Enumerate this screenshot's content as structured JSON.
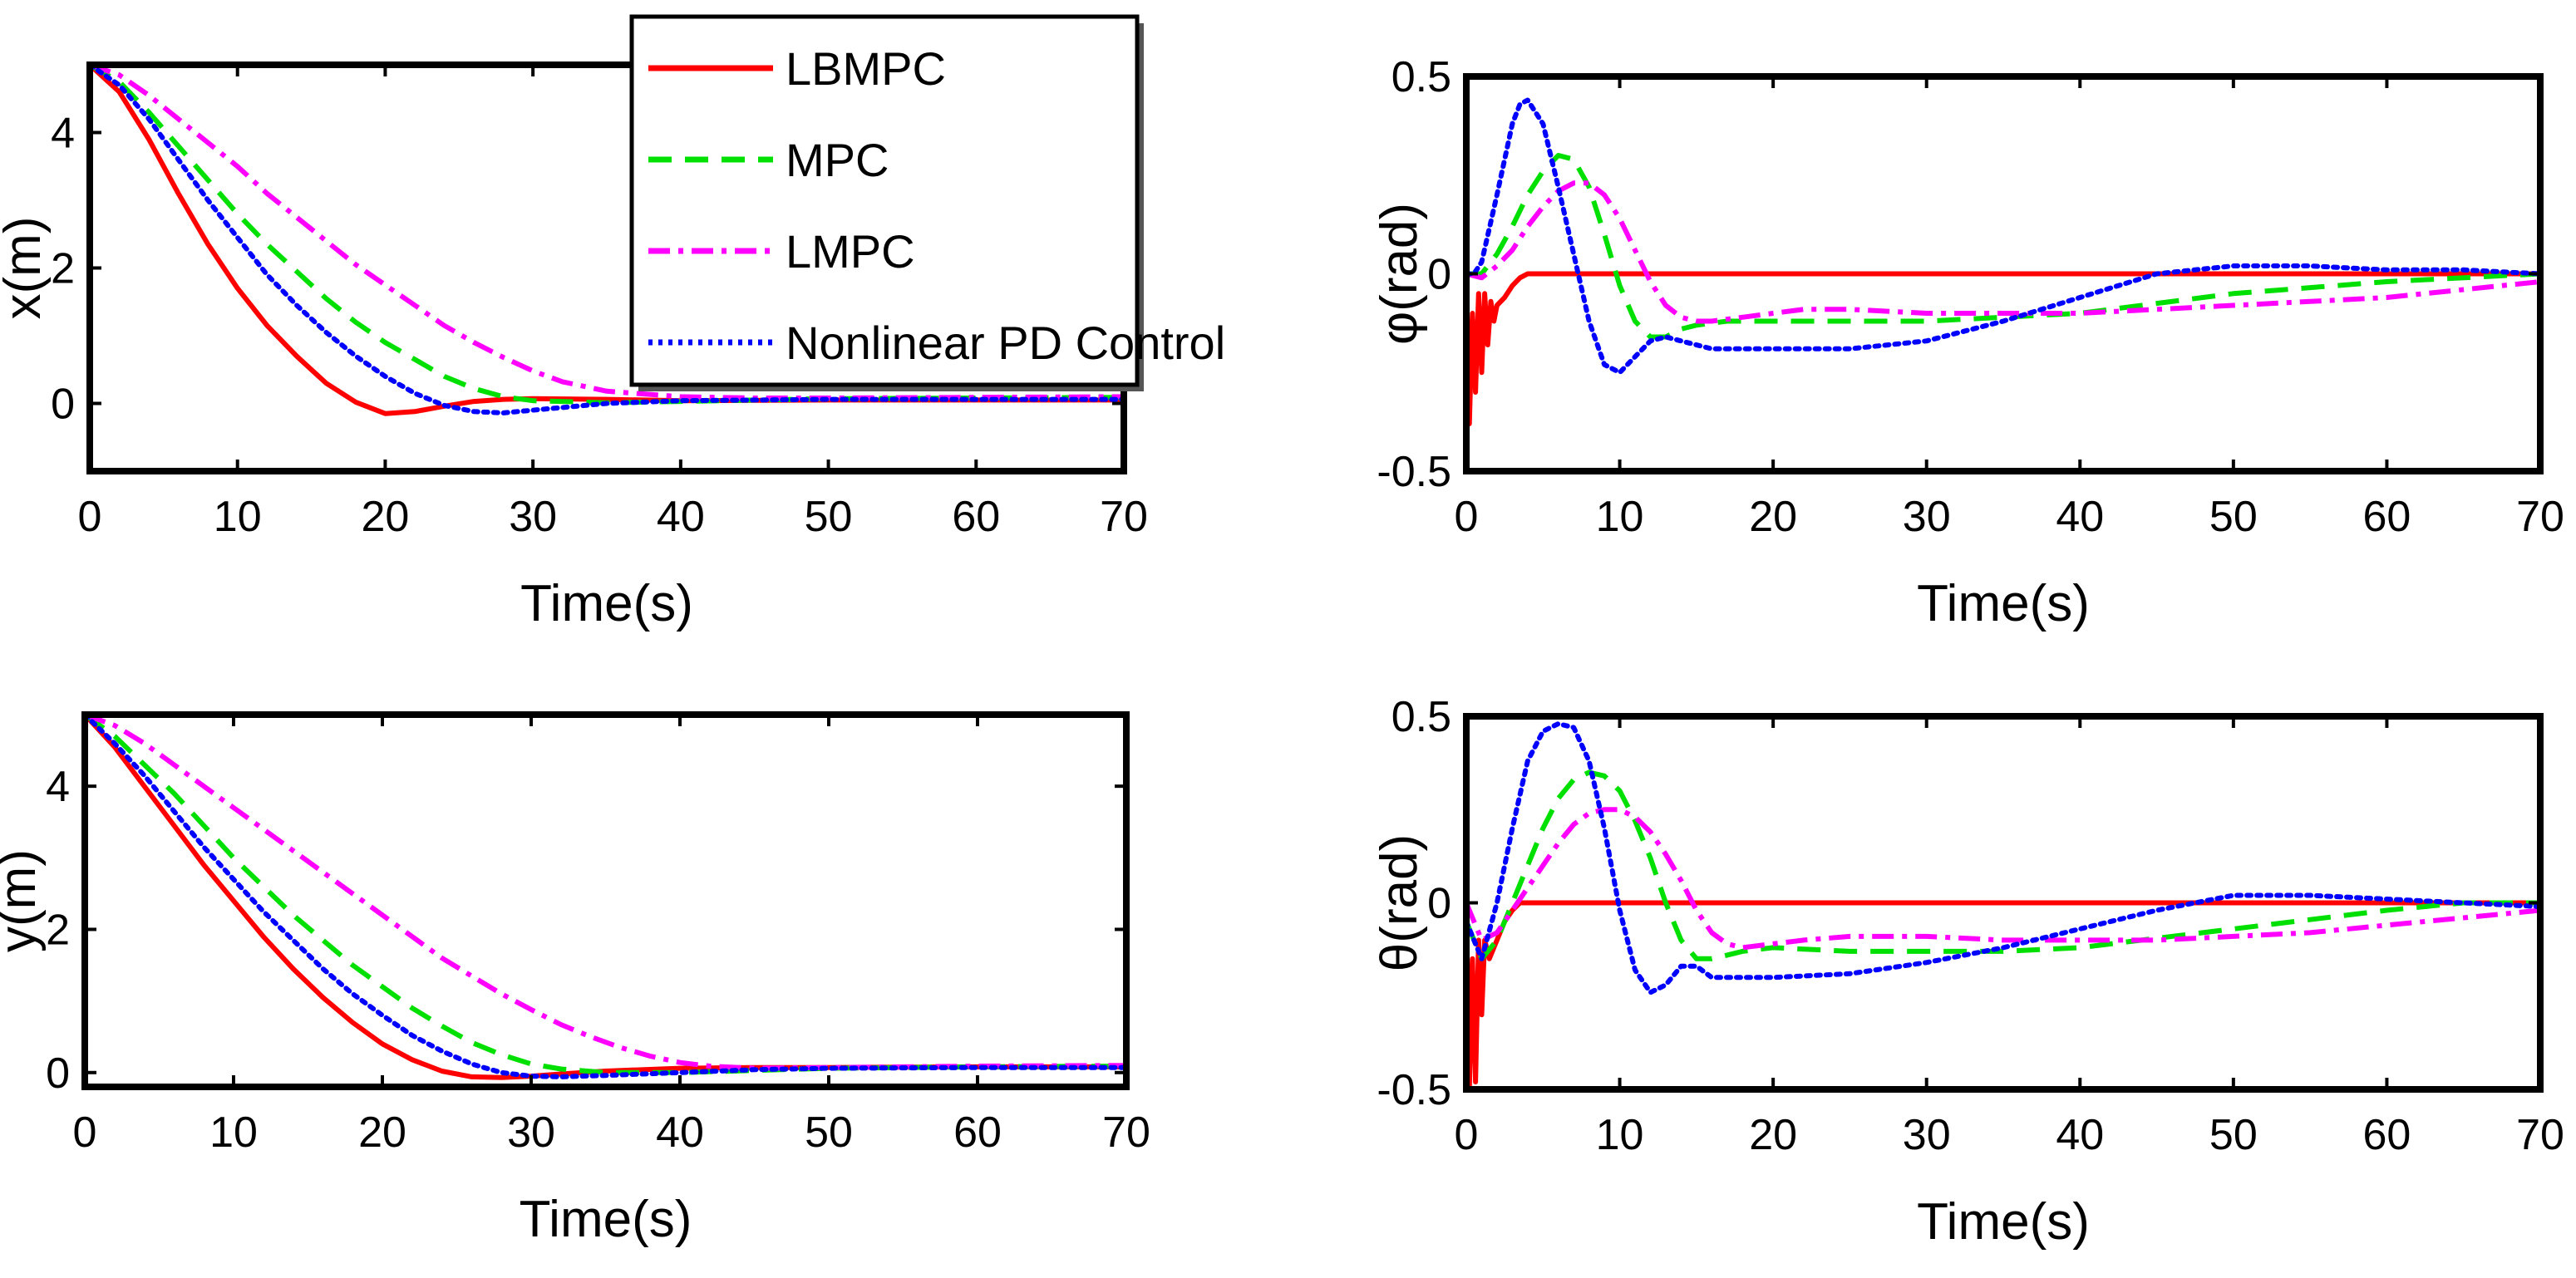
{
  "series_styles": [
    {
      "name": "LBMPC",
      "color": "#ff0000",
      "dash": "none"
    },
    {
      "name": "MPC",
      "color": "#00e000",
      "dash": "dashed"
    },
    {
      "name": "LMPC",
      "color": "#ff00ff",
      "dash": "dashdot"
    },
    {
      "name": "Nonlinear PD Control",
      "color": "#0000ff",
      "dash": "dotted"
    }
  ],
  "legend": {
    "entries": [
      "LBMPC",
      "MPC",
      "LMPC",
      "Nonlinear PD Control"
    ],
    "placement": "top-left panel, upper-right corner"
  },
  "chart_data": [
    {
      "type": "line",
      "id": "x",
      "title": "",
      "xlabel": "Time(s)",
      "ylabel": "x(m)",
      "xlim": [
        0,
        70
      ],
      "ylim": [
        -1,
        5
      ],
      "xticks": [
        0,
        10,
        20,
        30,
        40,
        50,
        60,
        70
      ],
      "yticks": [
        0,
        2,
        4
      ],
      "xtick_labels": [
        "0",
        "10",
        "20",
        "30",
        "40",
        "50",
        "60",
        "70"
      ],
      "ytick_labels": [
        "0",
        "2",
        "4"
      ],
      "series": [
        {
          "name": "LBMPC",
          "x": [
            0,
            2,
            4,
            6,
            8,
            10,
            12,
            14,
            16,
            18,
            20,
            22,
            24,
            26,
            28,
            30,
            35,
            40,
            50,
            60,
            70
          ],
          "y": [
            5,
            4.6,
            3.9,
            3.1,
            2.35,
            1.7,
            1.15,
            0.7,
            0.3,
            0.02,
            -0.15,
            -0.12,
            -0.04,
            0.03,
            0.06,
            0.07,
            0.06,
            0.04,
            0.05,
            0.05,
            0.05
          ]
        },
        {
          "name": "MPC",
          "x": [
            0,
            2,
            4,
            6,
            8,
            10,
            12,
            14,
            16,
            18,
            20,
            22,
            24,
            26,
            28,
            30,
            35,
            40,
            50,
            60,
            70
          ],
          "y": [
            5,
            4.75,
            4.3,
            3.8,
            3.3,
            2.8,
            2.35,
            1.95,
            1.55,
            1.2,
            0.9,
            0.65,
            0.4,
            0.22,
            0.1,
            0.04,
            0.01,
            0.03,
            0.07,
            0.08,
            0.09
          ]
        },
        {
          "name": "LMPC",
          "x": [
            0,
            2,
            4,
            6,
            8,
            10,
            12,
            14,
            16,
            18,
            20,
            22,
            24,
            26,
            28,
            30,
            32,
            35,
            40,
            45,
            50,
            60,
            70
          ],
          "y": [
            5,
            4.85,
            4.55,
            4.2,
            3.85,
            3.5,
            3.1,
            2.75,
            2.4,
            2.05,
            1.75,
            1.45,
            1.15,
            0.9,
            0.68,
            0.48,
            0.32,
            0.18,
            0.1,
            0.08,
            0.08,
            0.09,
            0.1
          ]
        },
        {
          "name": "Nonlinear PD Control",
          "x": [
            0,
            2,
            4,
            6,
            8,
            10,
            12,
            14,
            16,
            18,
            20,
            22,
            24,
            26,
            28,
            30,
            32,
            35,
            40,
            50,
            60,
            70
          ],
          "y": [
            5,
            4.7,
            4.2,
            3.6,
            3.0,
            2.45,
            1.9,
            1.45,
            1.05,
            0.7,
            0.4,
            0.15,
            -0.03,
            -0.12,
            -0.14,
            -0.1,
            -0.06,
            0.0,
            0.04,
            0.06,
            0.06,
            0.06
          ]
        }
      ]
    },
    {
      "type": "line",
      "id": "phi",
      "title": "",
      "xlabel": "Time(s)",
      "ylabel": "φ(rad)",
      "xlim": [
        0,
        70
      ],
      "ylim": [
        -0.5,
        0.5
      ],
      "xticks": [
        0,
        10,
        20,
        30,
        40,
        50,
        60,
        70
      ],
      "yticks": [
        -0.5,
        0,
        0.5
      ],
      "xtick_labels": [
        "0",
        "10",
        "20",
        "30",
        "40",
        "50",
        "60",
        "70"
      ],
      "ytick_labels": [
        "-0.5",
        "0",
        "0.5"
      ],
      "series": [
        {
          "name": "LBMPC",
          "x": [
            0,
            0.2,
            0.4,
            0.6,
            0.8,
            1.0,
            1.2,
            1.4,
            1.6,
            1.8,
            2.0,
            2.5,
            3.0,
            3.5,
            4.0,
            4.5,
            70
          ],
          "y": [
            0,
            -0.38,
            -0.1,
            -0.3,
            -0.05,
            -0.25,
            -0.05,
            -0.18,
            -0.07,
            -0.12,
            -0.08,
            -0.06,
            -0.03,
            -0.01,
            0,
            0,
            0
          ]
        },
        {
          "name": "MPC",
          "x": [
            0,
            1,
            2,
            3,
            4,
            5,
            6,
            7,
            8,
            9,
            10,
            11,
            12,
            13,
            14,
            15,
            17,
            20,
            25,
            30,
            40,
            50,
            60,
            70
          ],
          "y": [
            0,
            0,
            0.05,
            0.12,
            0.2,
            0.26,
            0.3,
            0.29,
            0.22,
            0.1,
            -0.03,
            -0.12,
            -0.16,
            -0.16,
            -0.14,
            -0.13,
            -0.12,
            -0.12,
            -0.12,
            -0.12,
            -0.1,
            -0.05,
            -0.02,
            0
          ]
        },
        {
          "name": "LMPC",
          "x": [
            0,
            1,
            2,
            3,
            4,
            5,
            6,
            7,
            8,
            9,
            10,
            11,
            12,
            13,
            14,
            15,
            16,
            18,
            20,
            22,
            25,
            30,
            35,
            40,
            45,
            50,
            55,
            60,
            65,
            70
          ],
          "y": [
            0,
            -0.01,
            0.02,
            0.06,
            0.12,
            0.17,
            0.21,
            0.23,
            0.23,
            0.2,
            0.14,
            0.06,
            -0.02,
            -0.08,
            -0.11,
            -0.12,
            -0.12,
            -0.11,
            -0.1,
            -0.09,
            -0.09,
            -0.1,
            -0.1,
            -0.1,
            -0.09,
            -0.08,
            -0.07,
            -0.06,
            -0.04,
            -0.02
          ]
        },
        {
          "name": "Nonlinear PD Control",
          "x": [
            0,
            0.5,
            1,
            2,
            3,
            3.5,
            4,
            5,
            6,
            7,
            8,
            9,
            10,
            11,
            12,
            13,
            14,
            16,
            20,
            25,
            30,
            35,
            40,
            45,
            50,
            55,
            60,
            65,
            70
          ],
          "y": [
            0,
            0,
            0.03,
            0.2,
            0.38,
            0.43,
            0.44,
            0.38,
            0.22,
            0.05,
            -0.12,
            -0.23,
            -0.25,
            -0.21,
            -0.17,
            -0.16,
            -0.17,
            -0.19,
            -0.19,
            -0.19,
            -0.17,
            -0.12,
            -0.06,
            0,
            0.02,
            0.02,
            0.01,
            0.01,
            0
          ]
        }
      ]
    },
    {
      "type": "line",
      "id": "y",
      "title": "",
      "xlabel": "Time(s)",
      "ylabel": "y(m)",
      "xlim": [
        0,
        70
      ],
      "ylim": [
        -0.2,
        5
      ],
      "xticks": [
        0,
        10,
        20,
        30,
        40,
        50,
        60,
        70
      ],
      "yticks": [
        0,
        2,
        4
      ],
      "xtick_labels": [
        "0",
        "10",
        "20",
        "30",
        "40",
        "50",
        "60",
        "70"
      ],
      "ytick_labels": [
        "0",
        "2",
        "4"
      ],
      "series": [
        {
          "name": "LBMPC",
          "x": [
            0,
            2,
            4,
            6,
            8,
            10,
            12,
            14,
            16,
            18,
            20,
            22,
            24,
            26,
            28,
            30,
            32,
            35,
            40,
            45,
            50,
            60,
            70
          ],
          "y": [
            5,
            4.55,
            4.0,
            3.45,
            2.9,
            2.4,
            1.9,
            1.45,
            1.05,
            0.7,
            0.4,
            0.18,
            0.02,
            -0.06,
            -0.07,
            -0.05,
            -0.02,
            0.02,
            0.06,
            0.07,
            0.07,
            0.08,
            0.08
          ]
        },
        {
          "name": "MPC",
          "x": [
            0,
            2,
            4,
            6,
            8,
            10,
            12,
            14,
            16,
            18,
            20,
            22,
            24,
            26,
            28,
            30,
            32,
            35,
            40,
            45,
            50,
            60,
            70
          ],
          "y": [
            5,
            4.7,
            4.3,
            3.9,
            3.45,
            3.0,
            2.6,
            2.2,
            1.85,
            1.5,
            1.2,
            0.9,
            0.65,
            0.42,
            0.25,
            0.12,
            0.05,
            0.0,
            0.0,
            0.03,
            0.06,
            0.08,
            0.09
          ]
        },
        {
          "name": "LMPC",
          "x": [
            0,
            2,
            4,
            6,
            8,
            10,
            12,
            14,
            16,
            18,
            20,
            22,
            24,
            26,
            28,
            30,
            32,
            34,
            36,
            38,
            40,
            42,
            45,
            50,
            60,
            70
          ],
          "y": [
            5,
            4.85,
            4.6,
            4.3,
            4.0,
            3.7,
            3.4,
            3.1,
            2.8,
            2.5,
            2.2,
            1.9,
            1.6,
            1.35,
            1.1,
            0.88,
            0.67,
            0.5,
            0.35,
            0.23,
            0.14,
            0.09,
            0.06,
            0.07,
            0.09,
            0.1
          ]
        },
        {
          "name": "Nonlinear PD Control",
          "x": [
            0,
            2,
            4,
            6,
            8,
            10,
            12,
            14,
            16,
            18,
            20,
            22,
            24,
            26,
            28,
            30,
            32,
            35,
            40,
            45,
            50,
            60,
            70
          ],
          "y": [
            5,
            4.6,
            4.15,
            3.65,
            3.15,
            2.7,
            2.25,
            1.85,
            1.45,
            1.1,
            0.8,
            0.52,
            0.3,
            0.12,
            0.0,
            -0.05,
            -0.06,
            -0.04,
            0.0,
            0.04,
            0.06,
            0.07,
            0.07
          ]
        }
      ]
    },
    {
      "type": "line",
      "id": "theta",
      "title": "",
      "xlabel": "Time(s)",
      "ylabel": "θ(rad)",
      "xlim": [
        0,
        70
      ],
      "ylim": [
        -0.5,
        0.5
      ],
      "xticks": [
        0,
        10,
        20,
        30,
        40,
        50,
        60,
        70
      ],
      "yticks": [
        -0.5,
        0,
        0.5
      ],
      "xtick_labels": [
        "0",
        "10",
        "20",
        "30",
        "40",
        "50",
        "60",
        "70"
      ],
      "ytick_labels": [
        "-0.5",
        "0",
        "0.5"
      ],
      "series": [
        {
          "name": "LBMPC",
          "x": [
            0,
            0.2,
            0.4,
            0.6,
            0.8,
            1.0,
            1.2,
            1.5,
            2.0,
            2.5,
            3.0,
            3.5,
            4.0,
            70
          ],
          "y": [
            0,
            -0.5,
            -0.15,
            -0.48,
            -0.1,
            -0.3,
            -0.1,
            -0.15,
            -0.1,
            -0.05,
            -0.02,
            0,
            0,
            0
          ]
        },
        {
          "name": "MPC",
          "x": [
            0,
            1,
            2,
            3,
            4,
            5,
            6,
            7,
            8,
            9,
            10,
            11,
            12,
            13,
            14,
            15,
            16,
            17,
            18,
            20,
            25,
            30,
            35,
            40,
            50,
            60,
            65,
            70
          ],
          "y": [
            -0.05,
            -0.15,
            -0.1,
            0.0,
            0.1,
            0.2,
            0.28,
            0.33,
            0.35,
            0.34,
            0.3,
            0.22,
            0.12,
            0.0,
            -0.1,
            -0.15,
            -0.15,
            -0.14,
            -0.13,
            -0.12,
            -0.13,
            -0.13,
            -0.13,
            -0.12,
            -0.07,
            -0.02,
            0.0,
            0.0
          ]
        },
        {
          "name": "LMPC",
          "x": [
            0,
            1,
            2,
            3,
            4,
            5,
            6,
            7,
            8,
            9,
            10,
            11,
            12,
            13,
            14,
            15,
            16,
            17,
            18,
            20,
            22,
            25,
            30,
            35,
            40,
            45,
            50,
            55,
            60,
            65,
            70
          ],
          "y": [
            0,
            -0.1,
            -0.08,
            -0.02,
            0.04,
            0.1,
            0.16,
            0.21,
            0.24,
            0.25,
            0.25,
            0.23,
            0.19,
            0.13,
            0.06,
            -0.02,
            -0.08,
            -0.11,
            -0.12,
            -0.11,
            -0.1,
            -0.09,
            -0.09,
            -0.1,
            -0.1,
            -0.1,
            -0.09,
            -0.08,
            -0.06,
            -0.04,
            -0.02
          ]
        },
        {
          "name": "Nonlinear PD Control",
          "x": [
            0,
            1,
            2,
            3,
            4,
            5,
            6,
            7,
            8,
            9,
            10,
            11,
            12,
            13,
            14,
            15,
            16,
            18,
            20,
            25,
            30,
            35,
            40,
            45,
            50,
            55,
            60,
            65,
            70
          ],
          "y": [
            -0.05,
            -0.15,
            0.0,
            0.2,
            0.38,
            0.46,
            0.48,
            0.47,
            0.38,
            0.2,
            -0.02,
            -0.18,
            -0.24,
            -0.22,
            -0.17,
            -0.17,
            -0.2,
            -0.2,
            -0.2,
            -0.19,
            -0.16,
            -0.12,
            -0.07,
            -0.02,
            0.02,
            0.02,
            0.01,
            0.0,
            -0.01
          ]
        }
      ]
    }
  ]
}
